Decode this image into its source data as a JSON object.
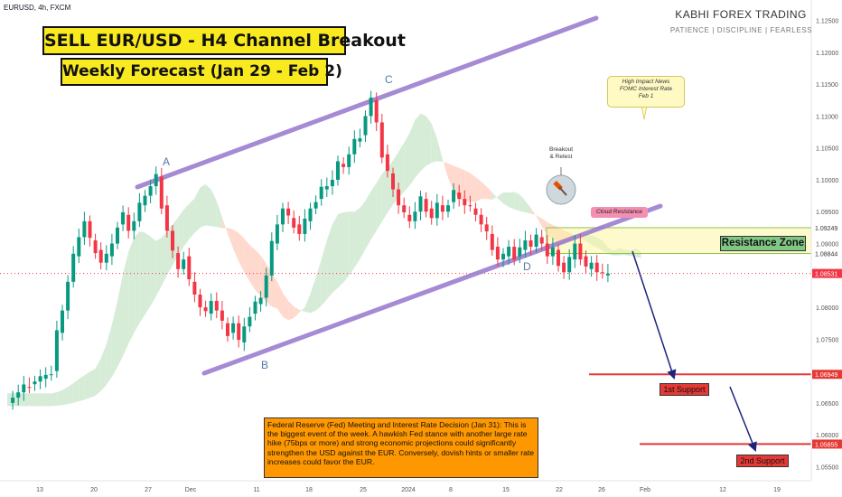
{
  "ticker": "EURUSD, 4h, FXCM",
  "brand": "KABHI FOREX TRADING",
  "motto": "PATIENCE  |  DISCIPLINE  |  FEARLESS",
  "title": "SELL EUR/USD - H4 Channel Breakout",
  "subtitle": "Weekly Forecast (Jan 29 - Feb 2)",
  "fed_note": "Federal Reserve (Fed) Meeting and Interest Rate Decision (Jan 31): This is the biggest event of the week. A hawkish Fed stance with another large rate hike (75bps or more) and strong economic projections could significantly strengthen the USD against the EUR. Conversely, dovish hints or smaller rate increases could favor the EUR.",
  "news_note": "High Impact News\nFOMC Interest Rate\nFeb 1",
  "breakout_note": "Breakout\n& Retest",
  "cloud_note": "Cloud Resistance",
  "resistance_label": "Resistance Zone",
  "support1_label": "1st Support",
  "support2_label": "2nd Support",
  "point_labels": [
    "A",
    "B",
    "C",
    "D"
  ],
  "colors": {
    "bull": "#089981",
    "bear": "#f23645",
    "channel": "#9575cd",
    "channel_border": "#5e35b1",
    "support": "#e53935",
    "resistance_zone": "#fff59d",
    "cloud_green": "#c8e6c9",
    "cloud_red": "#ffccbc",
    "arrow": "#1a237e",
    "title_bg": "#f9ea1f",
    "note_bg": "#ff9800"
  },
  "chart_data": {
    "type": "candlestick",
    "symbol": "EURUSD",
    "timeframe": "4h",
    "source": "FXCM",
    "x_ticks": [
      "13",
      "20",
      "27",
      "Dec",
      "11",
      "18",
      "25",
      "2024",
      "8",
      "15",
      "22",
      "26",
      "Feb",
      "12",
      "19"
    ],
    "y_ticks": [
      1.125,
      1.12,
      1.115,
      1.11,
      1.105,
      1.1,
      1.095,
      1.09,
      1.085,
      1.08,
      1.075,
      1.07,
      1.065,
      1.06,
      1.055
    ],
    "ylim": [
      1.0528,
      1.1282
    ],
    "price_labels": [
      {
        "value": 1.09249,
        "text": "1.09249",
        "style": "plain"
      },
      {
        "value": 1.08844,
        "text": "1.08844",
        "style": "plain"
      },
      {
        "value": 1.08531,
        "text": "1.08531",
        "style": "current"
      },
      {
        "value": 1.06949,
        "text": "1.06949",
        "style": "support"
      },
      {
        "value": 1.05855,
        "text": "1.05855",
        "style": "support"
      }
    ],
    "current_price": 1.08531,
    "resistance_zone": [
      1.08844,
      1.09249
    ],
    "support_levels": [
      1.06949,
      1.05855
    ],
    "pivots": [
      {
        "label": "A",
        "x_index": 27,
        "price": 1.101
      },
      {
        "label": "B",
        "x_index": 42,
        "price": 1.0737
      },
      {
        "label": "C",
        "x_index": 66,
        "price": 1.1135
      },
      {
        "label": "D",
        "x_index": 90,
        "price": 1.0872
      }
    ],
    "close_path": [
      [
        0,
        1.065
      ],
      [
        3,
        1.0675
      ],
      [
        6,
        1.0688
      ],
      [
        8,
        1.07
      ],
      [
        9,
        1.076
      ],
      [
        10,
        1.0795
      ],
      [
        11,
        1.084
      ],
      [
        12,
        1.088
      ],
      [
        13,
        1.091
      ],
      [
        14,
        1.0935
      ],
      [
        15,
        1.0905
      ],
      [
        16,
        1.089
      ],
      [
        17,
        1.087
      ],
      [
        18,
        1.088
      ],
      [
        19,
        1.09
      ],
      [
        20,
        1.093
      ],
      [
        21,
        1.0945
      ],
      [
        22,
        1.092
      ],
      [
        23,
        1.0935
      ],
      [
        24,
        1.096
      ],
      [
        25,
        1.0975
      ],
      [
        26,
        1.099
      ],
      [
        27,
        1.1005
      ],
      [
        28,
        1.096
      ],
      [
        29,
        1.092
      ],
      [
        30,
        1.0885
      ],
      [
        31,
        1.086
      ],
      [
        32,
        1.088
      ],
      [
        33,
        1.084
      ],
      [
        34,
        1.082
      ],
      [
        35,
        1.08
      ],
      [
        36,
        1.079
      ],
      [
        37,
        1.081
      ],
      [
        38,
        1.0795
      ],
      [
        39,
        1.0775
      ],
      [
        40,
        1.076
      ],
      [
        41,
        1.0775
      ],
      [
        42,
        1.0745
      ],
      [
        43,
        1.077
      ],
      [
        44,
        1.079
      ],
      [
        45,
        1.0805
      ],
      [
        46,
        1.0815
      ],
      [
        47,
        1.085
      ],
      [
        48,
        1.09
      ],
      [
        49,
        1.093
      ],
      [
        50,
        1.0955
      ],
      [
        51,
        1.094
      ],
      [
        52,
        1.093
      ],
      [
        53,
        1.0915
      ],
      [
        54,
        1.0935
      ],
      [
        55,
        1.0955
      ],
      [
        56,
        1.097
      ],
      [
        57,
        1.0985
      ],
      [
        58,
        1.099
      ],
      [
        59,
        1.1
      ],
      [
        60,
        1.1025
      ],
      [
        61,
        1.102
      ],
      [
        62,
        1.104
      ],
      [
        63,
        1.106
      ],
      [
        64,
        1.107
      ],
      [
        65,
        1.11
      ],
      [
        66,
        1.1125
      ],
      [
        67,
        1.109
      ],
      [
        68,
        1.104
      ],
      [
        69,
        1.101
      ],
      [
        70,
        1.0985
      ],
      [
        71,
        1.096
      ],
      [
        72,
        1.0945
      ],
      [
        73,
        1.0935
      ],
      [
        74,
        1.095
      ],
      [
        75,
        1.097
      ],
      [
        76,
        1.0955
      ],
      [
        77,
        1.094
      ],
      [
        78,
        1.096
      ],
      [
        79,
        1.095
      ],
      [
        80,
        1.0965
      ],
      [
        81,
        1.098
      ],
      [
        82,
        1.097
      ],
      [
        83,
        1.096
      ],
      [
        84,
        1.0955
      ],
      [
        85,
        1.0945
      ],
      [
        86,
        1.093
      ],
      [
        87,
        1.0915
      ],
      [
        88,
        1.0895
      ],
      [
        89,
        1.0875
      ],
      [
        90,
        1.088
      ],
      [
        91,
        1.0895
      ],
      [
        92,
        1.088
      ],
      [
        93,
        1.089
      ],
      [
        94,
        1.0905
      ],
      [
        95,
        1.0895
      ],
      [
        96,
        1.091
      ],
      [
        97,
        1.09
      ],
      [
        98,
        1.088
      ],
      [
        99,
        1.089
      ],
      [
        100,
        1.087
      ],
      [
        101,
        1.0855
      ],
      [
        102,
        1.0875
      ],
      [
        103,
        1.09
      ],
      [
        104,
        1.088
      ],
      [
        105,
        1.086
      ],
      [
        106,
        1.087
      ],
      [
        107,
        1.0855
      ],
      [
        108,
        1.085
      ],
      [
        109,
        1.0853
      ]
    ]
  }
}
